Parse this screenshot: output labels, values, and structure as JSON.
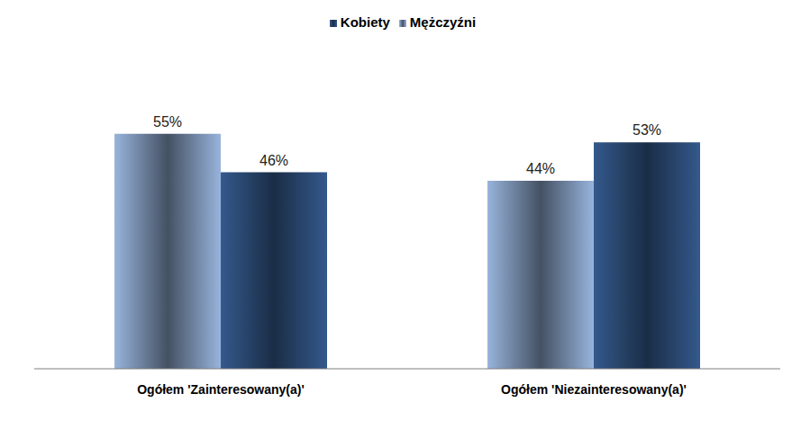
{
  "chart_data": {
    "type": "bar",
    "categories": [
      "Ogółem 'Zainteresowany(a)'",
      "Ogółem 'Niezainteresowany(a)'"
    ],
    "series": [
      {
        "name": "Mężczyźni",
        "color": "#98b4dc",
        "values": [
          55,
          44
        ],
        "value_labels": [
          "55%",
          "44%"
        ]
      },
      {
        "name": "Kobiety",
        "color": "#34598c",
        "values": [
          46,
          53
        ],
        "value_labels": [
          "46%",
          "53%"
        ]
      }
    ],
    "ylim": [
      0,
      60
    ],
    "data_labels": true,
    "legend": "top",
    "tick_labels": "x",
    "grid": false
  }
}
